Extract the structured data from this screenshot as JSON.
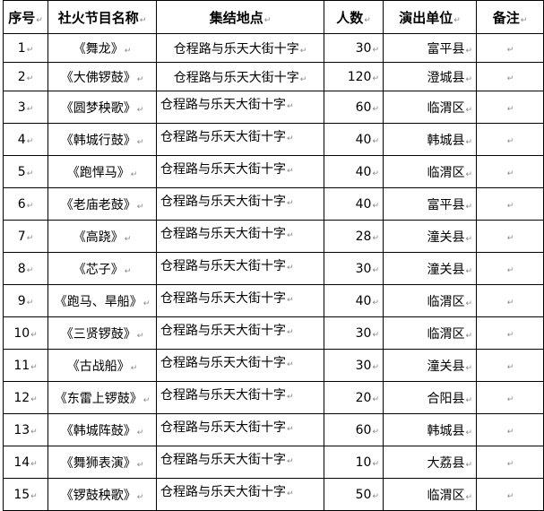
{
  "columns": [
    "序号",
    "社火节目名称",
    "集结地点",
    "人数",
    "演出单位",
    "备注"
  ],
  "rows": [
    {
      "no": "1",
      "name": "《舞龙》",
      "place": "仓程路与乐天大街十字",
      "count": "30",
      "unit": "富平县",
      "note": ""
    },
    {
      "no": "2",
      "name": "《大佛锣鼓》",
      "place": "仓程路与乐天大街十字",
      "count": "120",
      "unit": "澄城县",
      "note": ""
    },
    {
      "no": "3",
      "name": "《圆梦秧歌》",
      "place": "仓程路与乐天大街十字",
      "count": "60",
      "unit": "临渭区",
      "note": ""
    },
    {
      "no": "4",
      "name": "《韩城行鼓》",
      "place": "仓程路与乐天大街十字",
      "count": "40",
      "unit": "韩城县",
      "note": ""
    },
    {
      "no": "5",
      "name": "《跑悍马》",
      "place": "仓程路与乐天大街十字",
      "count": "40",
      "unit": "临渭区",
      "note": ""
    },
    {
      "no": "6",
      "name": "《老庙老鼓》",
      "place": "仓程路与乐天大街十字",
      "count": "40",
      "unit": "富平县",
      "note": ""
    },
    {
      "no": "7",
      "name": "《高跷》",
      "place": "仓程路与乐天大街十字",
      "count": "28",
      "unit": "潼关县",
      "note": ""
    },
    {
      "no": "8",
      "name": "《芯子》",
      "place": "仓程路与乐天大街十字",
      "count": "30",
      "unit": "潼关县",
      "note": ""
    },
    {
      "no": "9",
      "name": "《跑马、旱船》",
      "place": "仓程路与乐天大街十字",
      "count": "40",
      "unit": "临渭区",
      "note": ""
    },
    {
      "no": "10",
      "name": "《三贤锣鼓》",
      "place": "仓程路与乐天大街十字",
      "count": "30",
      "unit": "临渭区",
      "note": ""
    },
    {
      "no": "11",
      "name": "《古战船》",
      "place": "仓程路与乐天大街十字",
      "count": "30",
      "unit": "潼关县",
      "note": ""
    },
    {
      "no": "12",
      "name": "《东雷上锣鼓》",
      "place": "仓程路与乐天大街十字",
      "count": "20",
      "unit": "合阳县",
      "note": ""
    },
    {
      "no": "13",
      "name": "《韩城阵鼓》",
      "place": "仓程路与乐天大街十字",
      "count": "60",
      "unit": "韩城县",
      "note": ""
    },
    {
      "no": "14",
      "name": "《舞狮表演》",
      "place": "仓程路与乐天大街十字",
      "count": "10",
      "unit": "大荔县",
      "note": ""
    },
    {
      "no": "15",
      "name": "《锣鼓秧歌》",
      "place": "仓程路与乐天大街十字",
      "count": "50",
      "unit": "临渭区",
      "note": ""
    }
  ]
}
